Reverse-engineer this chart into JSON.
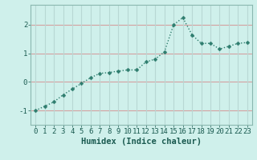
{
  "x": [
    0,
    1,
    2,
    3,
    4,
    5,
    6,
    7,
    8,
    9,
    10,
    11,
    12,
    13,
    14,
    15,
    16,
    17,
    18,
    19,
    20,
    21,
    22,
    23
  ],
  "y": [
    -1.0,
    -0.85,
    -0.7,
    -0.45,
    -0.25,
    -0.05,
    0.15,
    0.3,
    0.33,
    0.38,
    0.42,
    0.42,
    0.7,
    0.8,
    1.05,
    2.0,
    2.25,
    1.65,
    1.35,
    1.35,
    1.15,
    1.25,
    1.35,
    1.38
  ],
  "line_color": "#2e7d6e",
  "marker": "D",
  "marker_size": 2.5,
  "bg_color": "#cff0eb",
  "grid_color_h": "#d4a0a0",
  "grid_color_v": "#b8d8d4",
  "xlabel": "Humidex (Indice chaleur)",
  "xlim": [
    -0.5,
    23.5
  ],
  "ylim": [
    -1.5,
    2.7
  ],
  "yticks": [
    -1,
    0,
    1,
    2
  ],
  "xticks": [
    0,
    1,
    2,
    3,
    4,
    5,
    6,
    7,
    8,
    9,
    10,
    11,
    12,
    13,
    14,
    15,
    16,
    17,
    18,
    19,
    20,
    21,
    22,
    23
  ],
  "line_width": 1.0,
  "tick_fontsize": 6.5,
  "xlabel_fontsize": 7.5
}
